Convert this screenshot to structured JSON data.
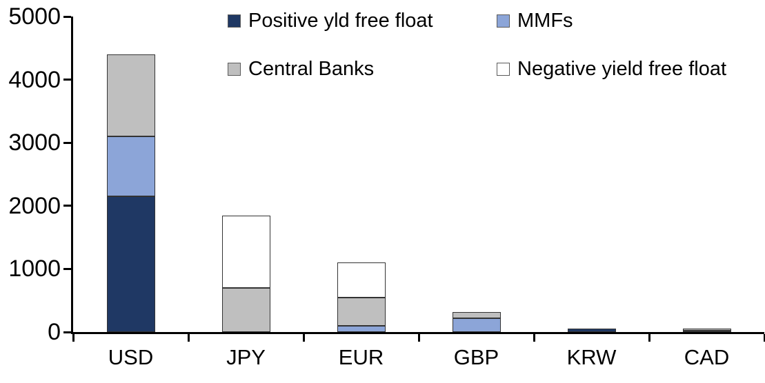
{
  "chart_data": {
    "type": "bar",
    "stacked": true,
    "title": "",
    "xlabel": "",
    "ylabel": "",
    "categories": [
      "USD",
      "JPY",
      "EUR",
      "GBP",
      "KRW",
      "CAD"
    ],
    "series": [
      {
        "name": "Positive yld free float",
        "color": "#1F3864",
        "values": [
          2150,
          0,
          0,
          0,
          50,
          25
        ]
      },
      {
        "name": "MMFs",
        "color": "#8CA5D8",
        "values": [
          950,
          0,
          100,
          220,
          0,
          0
        ]
      },
      {
        "name": "Central Banks",
        "color": "#BFBFBF",
        "values": [
          1300,
          700,
          450,
          100,
          0,
          35
        ]
      },
      {
        "name": "Negative yield free float",
        "color": "#FFFFFF",
        "values": [
          0,
          1150,
          550,
          0,
          0,
          0
        ]
      }
    ],
    "totals": [
      4400,
      1850,
      1100,
      320,
      50,
      60
    ],
    "ylim": [
      0,
      5000
    ],
    "yticks": [
      0,
      1000,
      2000,
      3000,
      4000,
      5000
    ],
    "grid": false,
    "legend_position": "top-inside",
    "legend_rows": [
      [
        "Positive yld free float",
        "MMFs"
      ],
      [
        "Central Banks",
        "Negative yield free float"
      ]
    ],
    "axis_color": "#000000",
    "segment_border_color": "#333333"
  }
}
